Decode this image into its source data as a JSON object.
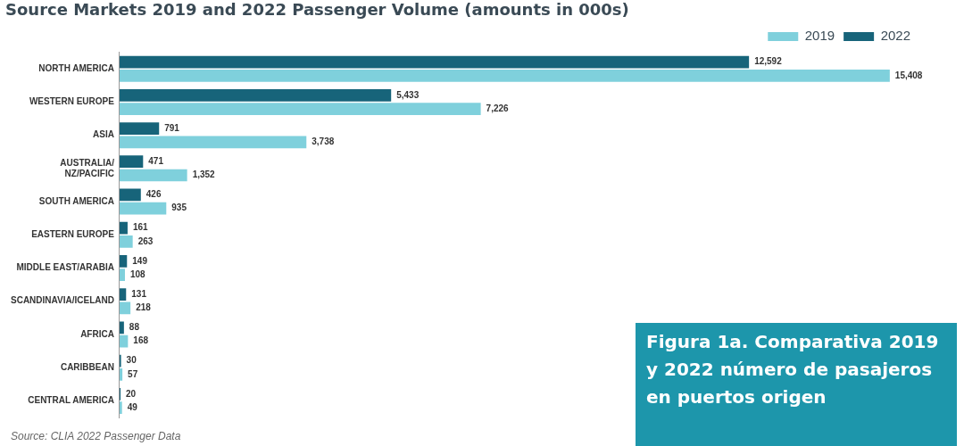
{
  "chart_data": {
    "type": "bar",
    "orientation": "horizontal",
    "title": "Source Markets 2019 and 2022 Passenger Volume (amounts in 000s)",
    "categories": [
      "NORTH AMERICA",
      "WESTERN EUROPE",
      "ASIA",
      "AUSTRALIA/ NZ/PACIFIC",
      "SOUTH AMERICA",
      "EASTERN EUROPE",
      "MIDDLE EAST/ARABIA",
      "SCANDINAVIA/ICELAND",
      "AFRICA",
      "CARIBBEAN",
      "CENTRAL AMERICA"
    ],
    "series": [
      {
        "name": "2022",
        "color": "#17647a",
        "values": [
          12592,
          5433,
          791,
          471,
          426,
          161,
          149,
          131,
          88,
          30,
          20
        ],
        "value_labels": [
          "12,592",
          "5,433",
          "791",
          "471",
          "426",
          "161",
          "149",
          "131",
          "88",
          "30",
          "20"
        ]
      },
      {
        "name": "2019",
        "color": "#7fd0dc",
        "values": [
          15408,
          7226,
          3738,
          1352,
          935,
          263,
          108,
          218,
          168,
          57,
          49
        ],
        "value_labels": [
          "15,408",
          "7,226",
          "3,738",
          "1,352",
          "935",
          "263",
          "108",
          "218",
          "168",
          "57",
          "49"
        ]
      }
    ],
    "legend": "top right",
    "annotations": [
      "Source: CLIA 2022 Passenger Data",
      "Figura 1a. Comparativa 2019 y 2022 número de pasajeros en puertos origen"
    ]
  }
}
